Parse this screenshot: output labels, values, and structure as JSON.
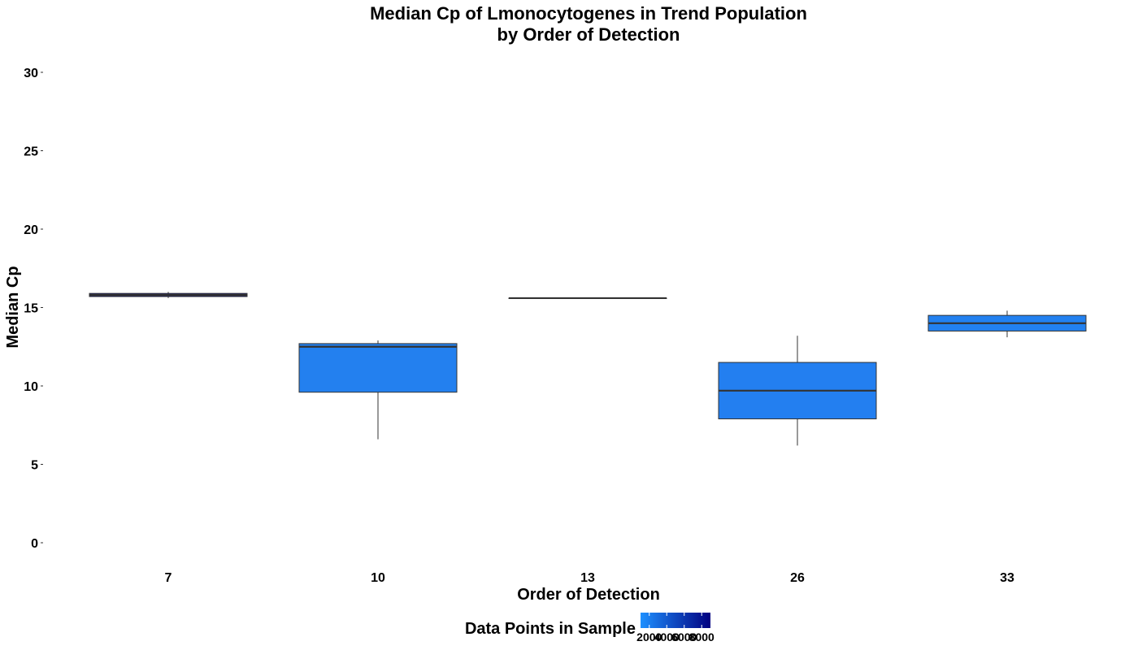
{
  "chart_data": {
    "type": "box",
    "title": "Median Cp of Lmonocytogenes in Trend Population",
    "subtitle": "by Order of Detection",
    "xlabel": "Order of Detection",
    "ylabel": "Median Cp",
    "ylim": [
      0,
      30
    ],
    "yticks": [
      0,
      5,
      10,
      15,
      20,
      25,
      30
    ],
    "grid": false,
    "legend_position": "bottom",
    "categories": [
      "7",
      "10",
      "13",
      "26",
      "33"
    ],
    "boxes": [
      {
        "category": "7",
        "whisker_low": 15.6,
        "q1": 15.7,
        "median": 15.8,
        "q3": 15.9,
        "whisker_high": 16.0,
        "count": 9000,
        "fill": "#090b6e"
      },
      {
        "category": "10",
        "whisker_low": 6.6,
        "q1": 9.6,
        "median": 12.5,
        "q3": 12.7,
        "whisker_high": 12.9,
        "count": 1200,
        "fill": "#2380ef"
      },
      {
        "category": "13",
        "whisker_low": 15.6,
        "q1": 15.6,
        "median": 15.6,
        "q3": 15.6,
        "whisker_high": 15.6,
        "count": 1000,
        "fill": "#2282f0"
      },
      {
        "category": "26",
        "whisker_low": 6.2,
        "q1": 7.9,
        "median": 9.7,
        "q3": 11.5,
        "whisker_high": 13.2,
        "count": 1500,
        "fill": "#237ff0"
      },
      {
        "category": "33",
        "whisker_low": 13.1,
        "q1": 13.5,
        "median": 14.0,
        "q3": 14.5,
        "whisker_high": 14.8,
        "count": 1300,
        "fill": "#2281f0"
      }
    ],
    "legend": {
      "title": "Data Points in Sample",
      "type": "colorbar",
      "low_color": "#1e90ff",
      "high_color": "#000080",
      "range": [
        1000,
        9000
      ],
      "tick_values": [
        2000,
        4000,
        6000,
        8000
      ],
      "tick_labels": [
        "2000",
        "4000",
        "6000",
        "8000"
      ]
    }
  }
}
